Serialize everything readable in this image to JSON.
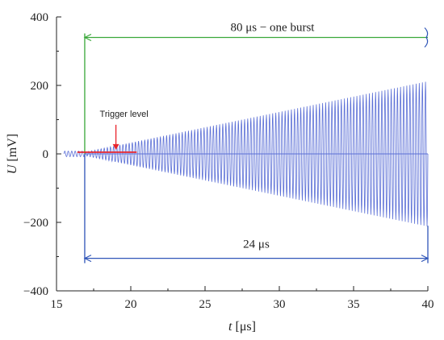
{
  "chart_data": {
    "type": "line",
    "x_label_italic": "t",
    "x_label_unit": "[μs]",
    "y_label_italic": "U",
    "y_label_unit": "[mV]",
    "xlim": [
      15,
      40
    ],
    "ylim": [
      -400,
      400
    ],
    "x_ticks": [
      15,
      20,
      25,
      30,
      35,
      40
    ],
    "y_ticks": [
      400,
      200,
      0,
      -200,
      -400
    ],
    "x_tick_labels": [
      "15",
      "20",
      "25",
      "30",
      "35",
      "40"
    ],
    "y_tick_labels": [
      "400",
      "200",
      "0",
      "−200",
      "−400"
    ],
    "grid": false,
    "series": [
      {
        "color": "#5b6fd6",
        "signal": {
          "pre_burst": {
            "x_start": 15.5,
            "x_end": 16.9,
            "amplitude_mV": 8
          },
          "burst": {
            "x_start": 16.9,
            "x_end": 40,
            "amplitude_start_mV": 5,
            "amplitude_end_mV": 212,
            "cycles": 110
          }
        }
      }
    ],
    "annotations": {
      "burst_span": {
        "label": "80 μs  − one burst",
        "x_start": 16.9,
        "x_end": 40,
        "y": 340,
        "color": "#3aa83a"
      },
      "measured_span": {
        "label": "24 μs",
        "x_start": 16.9,
        "x_end": 40,
        "y": -305,
        "color": "#2f55b8"
      },
      "trigger": {
        "label": "Trigger level",
        "level_mV": 5,
        "x_start": 16.4,
        "x_end": 20.4,
        "color": "#e8232a",
        "arrow_x": 19.0
      }
    }
  }
}
